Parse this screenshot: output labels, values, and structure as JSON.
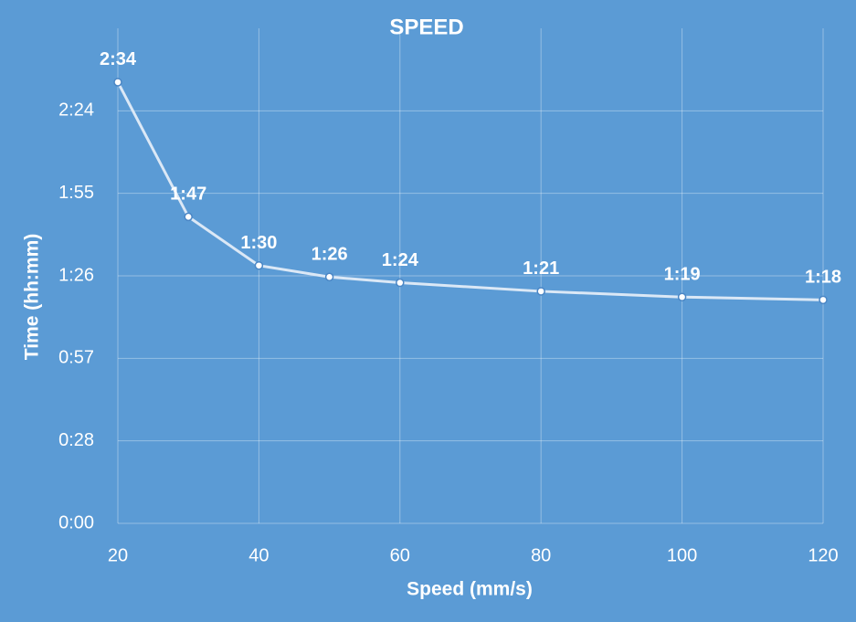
{
  "chart_data": {
    "type": "line",
    "title": "SPEED",
    "x_label": "Speed (mm/s)",
    "y_label": "Time (hh:mm)",
    "x": [
      20,
      30,
      40,
      50,
      60,
      80,
      100,
      120
    ],
    "series": [
      {
        "name": "Time",
        "color": "#dbe8f6",
        "values": [
          154,
          107,
          90,
          86,
          84,
          81,
          79,
          78
        ],
        "value_labels": [
          "2:34",
          "1:47",
          "1:30",
          "1:26",
          "1:24",
          "1:21",
          "1:19",
          "1:18"
        ]
      }
    ],
    "xlim": [
      20,
      120
    ],
    "xticks": [
      20,
      40,
      60,
      80,
      100,
      120
    ],
    "ylim": [
      0,
      172.8
    ],
    "yticks": [
      {
        "value": 0,
        "label": "0:00"
      },
      {
        "value": 28.8,
        "label": "0:28"
      },
      {
        "value": 57.6,
        "label": "0:57"
      },
      {
        "value": 86.4,
        "label": "1:26"
      },
      {
        "value": 115.2,
        "label": "1:55"
      },
      {
        "value": 144,
        "label": "2:24"
      }
    ],
    "grid": true
  }
}
